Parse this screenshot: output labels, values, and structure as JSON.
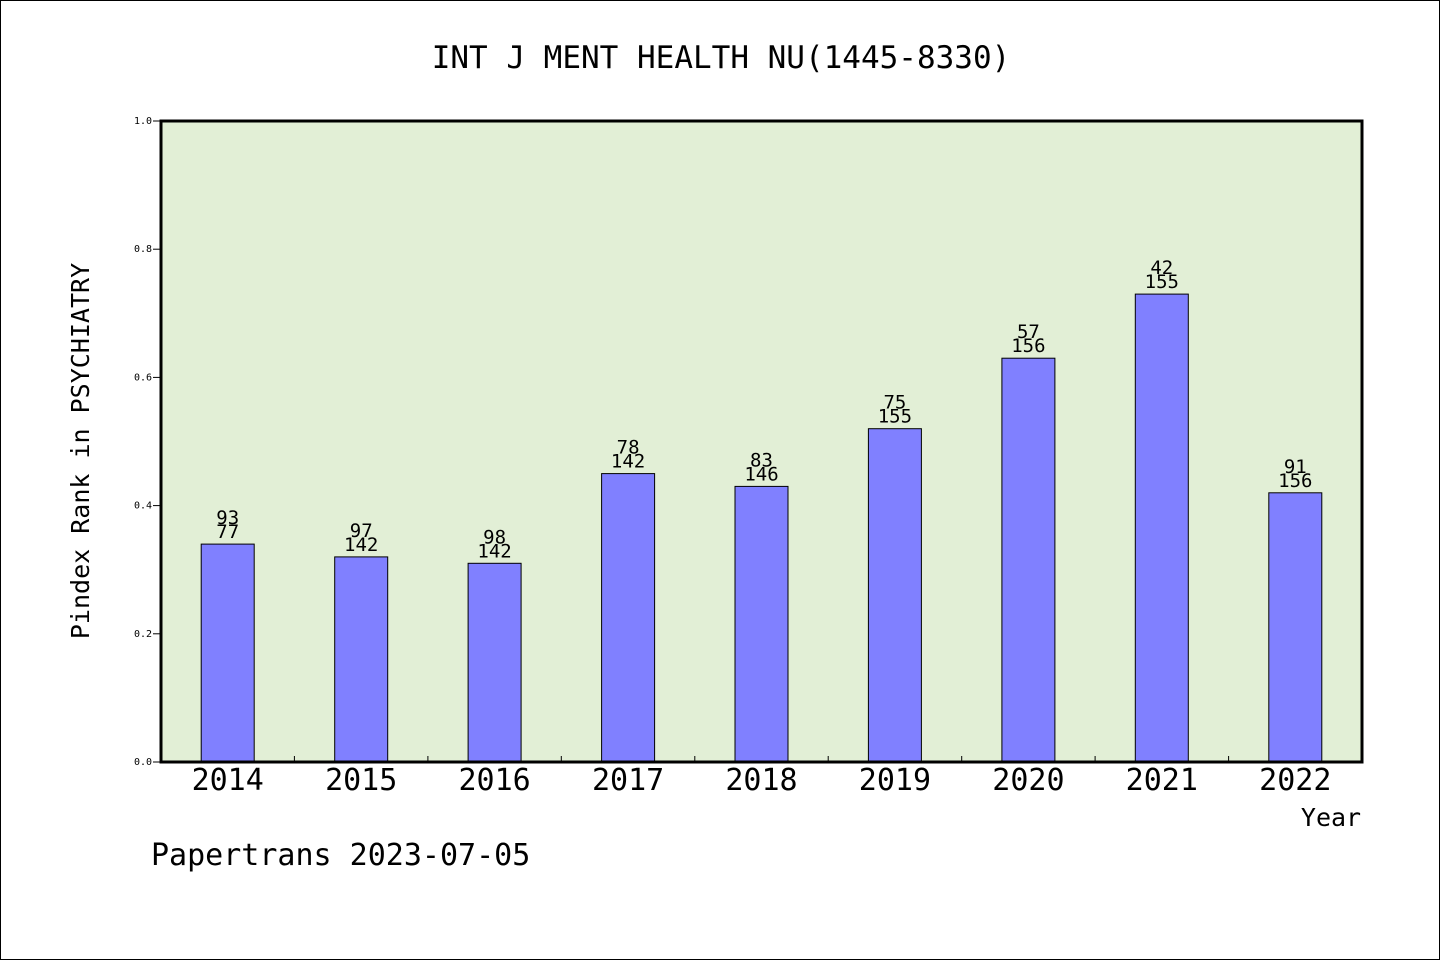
{
  "chart_data": {
    "type": "bar",
    "title": "INT J MENT HEALTH NU(1445-8330)",
    "xlabel": "Year",
    "ylabel": "Pindex Rank in PSYCHIATRY",
    "ylim": [
      0,
      1.0
    ],
    "y_ticks": [
      "0.0",
      "0.2",
      "0.4",
      "0.6",
      "0.8",
      "1.0"
    ],
    "categories": [
      "2014",
      "2015",
      "2016",
      "2017",
      "2018",
      "2019",
      "2020",
      "2021",
      "2022"
    ],
    "values": [
      0.34,
      0.32,
      0.31,
      0.45,
      0.43,
      0.52,
      0.63,
      0.73,
      0.42
    ],
    "rank_labels": [
      "93",
      "97",
      "98",
      "78",
      "83",
      "75",
      "57",
      "42",
      "91"
    ],
    "total_labels": [
      "77",
      "142",
      "142",
      "142",
      "146",
      "155",
      "156",
      "155",
      "156"
    ],
    "grid": false,
    "legend": "none",
    "colors": {
      "plot_background": "#e2efd6",
      "bar_fill": "#8080ff",
      "bar_stroke": "#000000"
    }
  },
  "footer": {
    "text": "Papertrans 2023-07-05"
  }
}
